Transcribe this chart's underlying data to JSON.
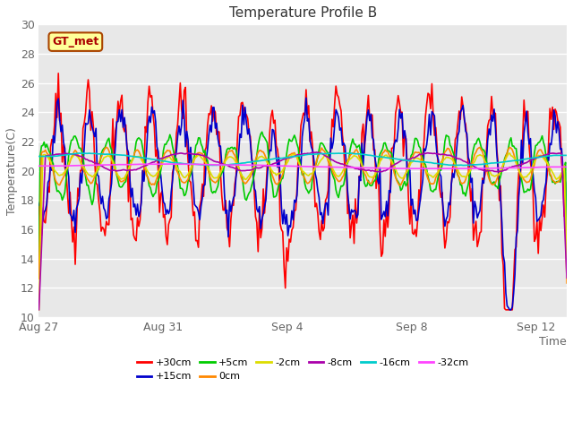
{
  "title": "Temperature Profile B",
  "xlabel": "Time",
  "ylabel": "Temperature(C)",
  "ylim": [
    10,
    30
  ],
  "yticks": [
    10,
    12,
    14,
    16,
    18,
    20,
    22,
    24,
    26,
    28,
    30
  ],
  "series": {
    "+30cm": {
      "color": "#FF0000",
      "lw": 1.2
    },
    "+15cm": {
      "color": "#0000CC",
      "lw": 1.2
    },
    "+5cm": {
      "color": "#00CC00",
      "lw": 1.2
    },
    "0cm": {
      "color": "#FF8800",
      "lw": 1.2
    },
    "-2cm": {
      "color": "#DDDD00",
      "lw": 1.2
    },
    "-8cm": {
      "color": "#AA00AA",
      "lw": 1.2
    },
    "-16cm": {
      "color": "#00CCCC",
      "lw": 1.2
    },
    "-32cm": {
      "color": "#FF44FF",
      "lw": 1.2
    }
  },
  "legend_row1": [
    "+30cm",
    "+15cm",
    "+5cm",
    "0cm",
    "-2cm",
    "-8cm"
  ],
  "legend_row2": [
    "-16cm",
    "-32cm"
  ],
  "xtick_labels": [
    "Aug 27",
    "Aug 31",
    "Sep 4",
    "Sep 8",
    "Sep 12"
  ],
  "xtick_positions": [
    0,
    4,
    8,
    12,
    16
  ],
  "xlim": [
    0,
    17
  ],
  "fig_bg": "#FFFFFF",
  "plot_bg": "#E8E8E8",
  "grid_color": "#FFFFFF",
  "title_fontsize": 11,
  "axis_label_fontsize": 9,
  "tick_fontsize": 9,
  "annotation_text": "GT_met",
  "annotation_bg": "#FFFF99",
  "annotation_border": "#AA4400",
  "annotation_color": "#AA0000",
  "annotation_fontsize": 9
}
